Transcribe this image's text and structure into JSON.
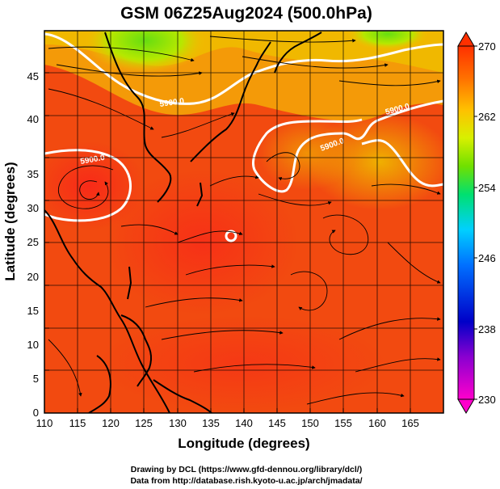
{
  "title": "GSM 06Z25Aug2024 (500.0hPa)",
  "xlabel": "Longitude (degrees)",
  "ylabel": "Latitude  (degrees)",
  "x_ticks": [
    "110",
    "115",
    "120",
    "125",
    "130",
    "135",
    "140",
    "145",
    "150",
    "155",
    "160",
    "165"
  ],
  "y_ticks": [
    "0",
    "5",
    "10",
    "15",
    "20",
    "25",
    "30",
    "35",
    "40",
    "45"
  ],
  "colorbar": {
    "ticks": [
      "230",
      "238",
      "246",
      "254",
      "262",
      "270"
    ],
    "min": 230,
    "max": 270
  },
  "contour_labels": [
    "5900.0",
    "5900.0",
    "5900.0",
    "5900.0"
  ],
  "credits": {
    "line1": "Drawing by DCL (https://www.gfd-dennou.org/library/dcl/)",
    "line2": "Data from http://database.rish.kyoto-u.ac.jp/arch/jmadata/"
  },
  "chart_data": {
    "type": "heatmap",
    "title": "GSM 06Z25Aug2024 (500.0hPa)",
    "xlabel": "Longitude (degrees)",
    "ylabel": "Latitude  (degrees)",
    "xlim": [
      110,
      170
    ],
    "ylim": [
      0,
      50
    ],
    "x_ticks": [
      110,
      115,
      120,
      125,
      130,
      135,
      140,
      145,
      150,
      155,
      160,
      165
    ],
    "y_ticks": [
      0,
      5,
      10,
      15,
      20,
      25,
      30,
      35,
      40,
      45
    ],
    "color_range": [
      230,
      270
    ],
    "contour_level": 5900.0,
    "overlays": [
      "streamlines",
      "coastlines",
      "5-degree grid"
    ]
  }
}
